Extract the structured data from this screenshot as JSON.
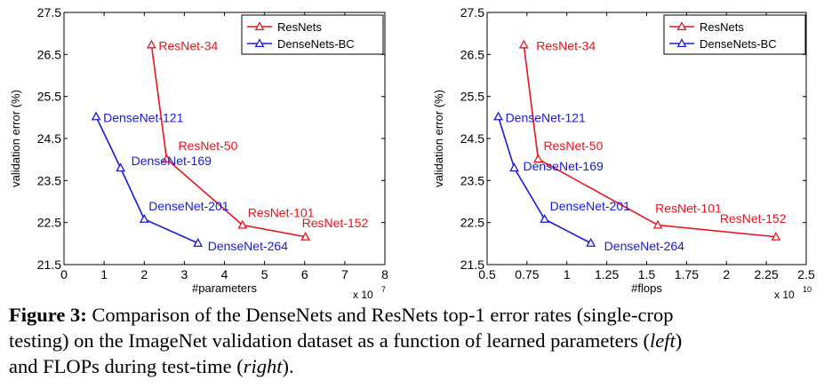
{
  "chart_data": [
    {
      "type": "line",
      "xlabel": "#parameters",
      "ylabel": "validation error (%)",
      "x_exponent": "x 10",
      "x_exponent_power": "7",
      "xlim": [
        0,
        8
      ],
      "ylim": [
        21.5,
        27.5
      ],
      "xticks": [
        "0",
        "1",
        "2",
        "3",
        "4",
        "5",
        "6",
        "7",
        "8"
      ],
      "xtick_values": [
        0,
        1,
        2,
        3,
        4,
        5,
        6,
        7,
        8
      ],
      "yticks": [
        "21.5",
        "22.5",
        "23.5",
        "24.5",
        "25.5",
        "26.5",
        "27.5"
      ],
      "ytick_values": [
        21.5,
        22.5,
        23.5,
        24.5,
        25.5,
        26.5,
        27.5
      ],
      "legend_position": "top-right",
      "series": [
        {
          "name": "ResNets",
          "color": "#e8141b",
          "marker": "triangle",
          "x": [
            2.18,
            2.56,
            4.45,
            6.02
          ],
          "y": [
            26.73,
            24.01,
            22.44,
            22.16
          ],
          "labels": [
            "ResNet-34",
            "ResNet-50",
            "ResNet-101",
            "ResNet-152"
          ]
        },
        {
          "name": "DenseNets-BC",
          "color": "#1a1adc",
          "marker": "triangle",
          "x": [
            0.8,
            1.41,
            2.0,
            3.34
          ],
          "y": [
            25.02,
            23.8,
            22.58,
            22.01
          ],
          "labels": [
            "DenseNet-121",
            "DenseNet-169",
            "DenseNet-201",
            "DenseNet-264"
          ]
        }
      ]
    },
    {
      "type": "line",
      "xlabel": "#flops",
      "ylabel": "validation error (%)",
      "x_exponent": "x 10",
      "x_exponent_power": "10",
      "xlim": [
        0.5,
        2.5
      ],
      "ylim": [
        21.5,
        27.5
      ],
      "xticks": [
        "0.5",
        "0.75",
        "1",
        "1.25",
        "1.5",
        "1.75",
        "2",
        "2.25",
        "2.5"
      ],
      "xtick_values": [
        0.5,
        0.75,
        1,
        1.25,
        1.5,
        1.75,
        2,
        2.25,
        2.5
      ],
      "yticks": [
        "21.5",
        "22.5",
        "23.5",
        "24.5",
        "25.5",
        "26.5",
        "27.5"
      ],
      "ytick_values": [
        21.5,
        22.5,
        23.5,
        24.5,
        25.5,
        26.5,
        27.5
      ],
      "legend_position": "top-right",
      "series": [
        {
          "name": "ResNets",
          "color": "#e8141b",
          "marker": "triangle",
          "x": [
            0.73,
            0.82,
            1.57,
            2.31
          ],
          "y": [
            26.73,
            24.01,
            22.44,
            22.16
          ],
          "labels": [
            "ResNet-34",
            "ResNet-50",
            "ResNet-101",
            "ResNet-152"
          ]
        },
        {
          "name": "DenseNets-BC",
          "color": "#1a1adc",
          "marker": "triangle",
          "x": [
            0.57,
            0.67,
            0.86,
            1.15
          ],
          "y": [
            25.02,
            23.8,
            22.58,
            22.01
          ],
          "labels": [
            "DenseNet-121",
            "DenseNet-169",
            "DenseNet-201",
            "DenseNet-264"
          ]
        }
      ]
    }
  ],
  "caption": {
    "label": "Figure 3:",
    "line1": " Comparison of the DenseNets and ResNets top-1 error rates (single-crop",
    "line2_a": "testing) on the ImageNet validation dataset as a function of learned parameters (",
    "line2_italic": "left",
    "line2_b": ")",
    "line3_a": "and FLOPs during test-time (",
    "line3_italic": "right",
    "line3_b": ")."
  }
}
